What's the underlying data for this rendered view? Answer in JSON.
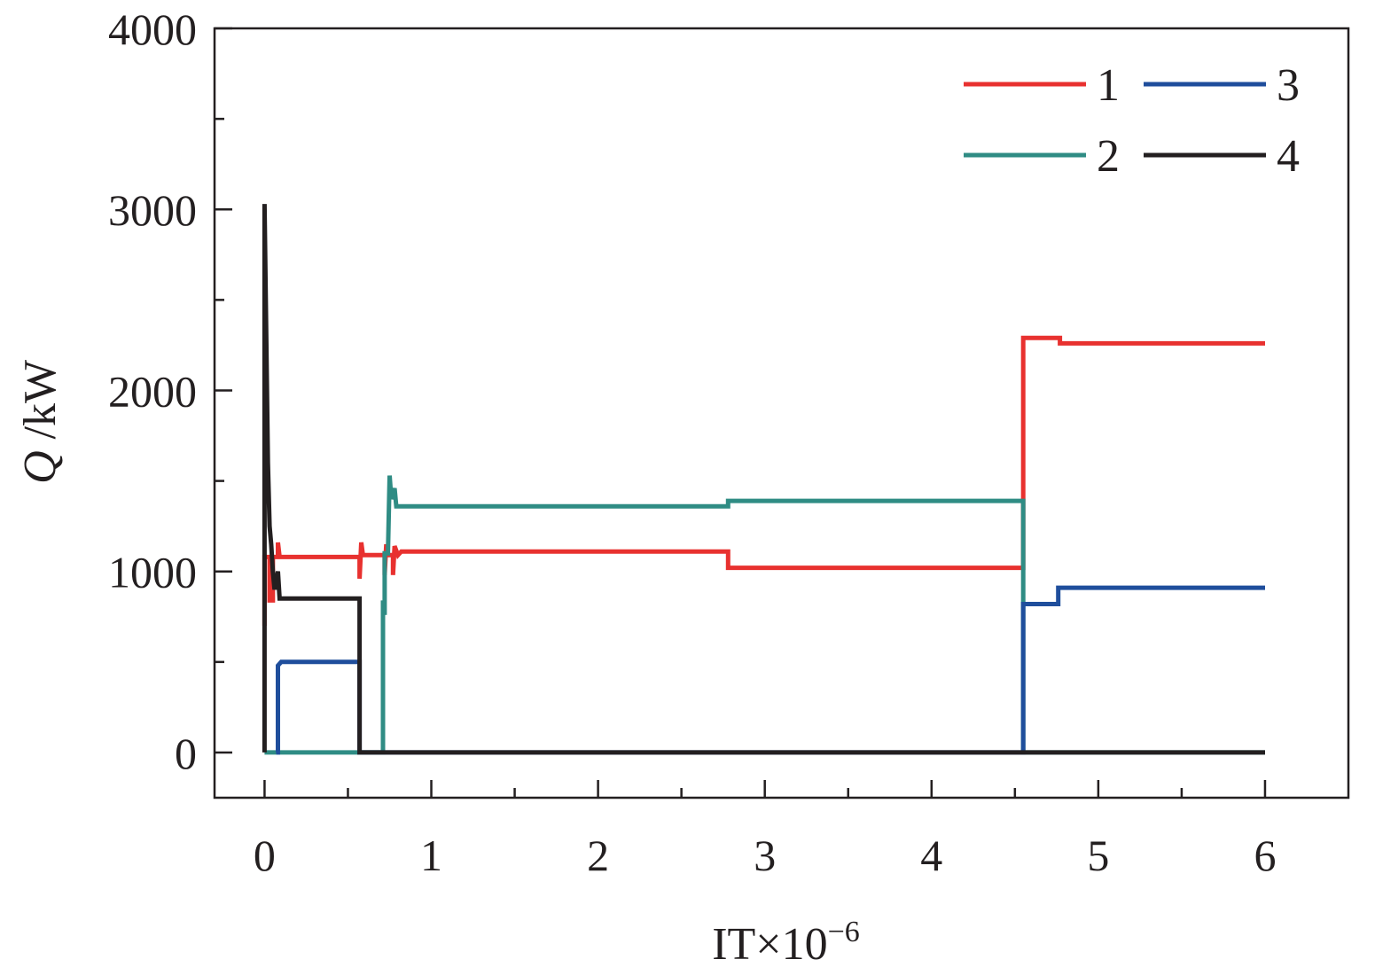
{
  "chart_data": {
    "type": "line",
    "title": "",
    "xlabel": {
      "main": "IT×10",
      "exponent": "−6"
    },
    "ylabel": {
      "symbol": "Q",
      "unit": " /kW"
    },
    "xlim": [
      -0.3,
      6.5
    ],
    "ylim": [
      -250,
      4000
    ],
    "xticks": [
      0,
      1,
      2,
      3,
      4,
      5,
      6
    ],
    "xtick_labels": [
      "0",
      "1",
      "2",
      "3",
      "4",
      "5",
      "6"
    ],
    "xminor_ticks": [
      0.5,
      1.5,
      2.5,
      3.5,
      4.5,
      5.5
    ],
    "yticks": [
      0,
      1000,
      2000,
      3000,
      4000
    ],
    "ytick_labels": [
      "0",
      "1000",
      "2000",
      "3000",
      "4000"
    ],
    "yminor_ticks": [
      500,
      1500,
      2500,
      3500
    ],
    "grid": false,
    "legend": {
      "position": "top-right",
      "columns": 2
    },
    "series": [
      {
        "name": "1",
        "color": "#e8312f",
        "points": [
          [
            0.0,
            700
          ],
          [
            0.0,
            1080
          ],
          [
            0.03,
            1080
          ],
          [
            0.03,
            840
          ],
          [
            0.05,
            840
          ],
          [
            0.05,
            1080
          ],
          [
            0.08,
            1080
          ],
          [
            0.08,
            1160
          ],
          [
            0.09,
            1080
          ],
          [
            0.57,
            1080
          ],
          [
            0.57,
            960
          ],
          [
            0.58,
            1160
          ],
          [
            0.59,
            1090
          ],
          [
            0.72,
            1090
          ],
          [
            0.72,
            980
          ],
          [
            0.73,
            1150
          ],
          [
            0.74,
            1090
          ],
          [
            0.77,
            1090
          ],
          [
            0.77,
            980
          ],
          [
            0.78,
            1140
          ],
          [
            0.8,
            1090
          ],
          [
            0.82,
            1110
          ],
          [
            2.78,
            1110
          ],
          [
            2.78,
            1020
          ],
          [
            4.55,
            1020
          ],
          [
            4.55,
            2290
          ],
          [
            4.77,
            2290
          ],
          [
            4.77,
            2260
          ],
          [
            6.0,
            2260
          ]
        ]
      },
      {
        "name": "2",
        "color": "#2f8c84",
        "points": [
          [
            0.0,
            0
          ],
          [
            0.71,
            0
          ],
          [
            0.71,
            840
          ],
          [
            0.72,
            760
          ],
          [
            0.72,
            1100
          ],
          [
            0.74,
            1100
          ],
          [
            0.75,
            1530
          ],
          [
            0.76,
            1400
          ],
          [
            0.78,
            1460
          ],
          [
            0.79,
            1360
          ],
          [
            2.78,
            1360
          ],
          [
            2.78,
            1390
          ],
          [
            4.55,
            1390
          ],
          [
            4.55,
            0
          ],
          [
            6.0,
            0
          ]
        ]
      },
      {
        "name": "3",
        "color": "#1f4e9c",
        "points": [
          [
            0.07,
            0
          ],
          [
            0.08,
            0
          ],
          [
            0.08,
            480
          ],
          [
            0.1,
            500
          ],
          [
            0.57,
            500
          ],
          [
            0.57,
            0
          ],
          [
            4.55,
            0
          ],
          [
            4.55,
            820
          ],
          [
            4.76,
            820
          ],
          [
            4.76,
            910
          ],
          [
            6.0,
            910
          ]
        ]
      },
      {
        "name": "4",
        "color": "#231f20",
        "points": [
          [
            0.0,
            0
          ],
          [
            0.0,
            3030
          ],
          [
            0.02,
            1600
          ],
          [
            0.03,
            1250
          ],
          [
            0.04,
            1150
          ],
          [
            0.05,
            1000
          ],
          [
            0.06,
            900
          ],
          [
            0.08,
            1000
          ],
          [
            0.09,
            850
          ],
          [
            0.57,
            850
          ],
          [
            0.57,
            0
          ],
          [
            6.0,
            0
          ]
        ]
      }
    ]
  }
}
